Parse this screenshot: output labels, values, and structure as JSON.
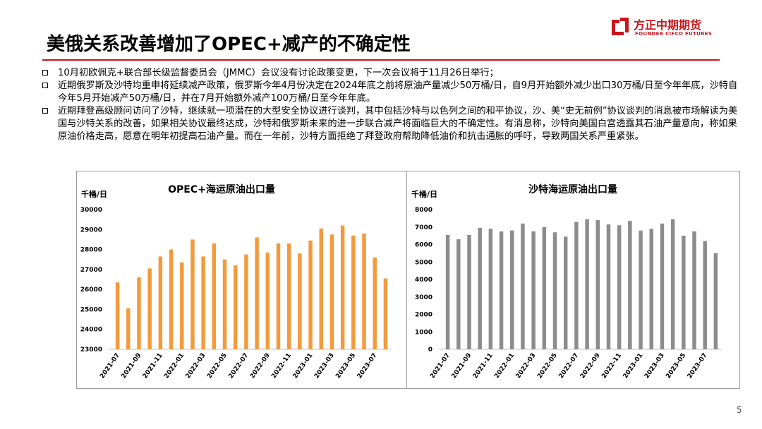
{
  "header": {
    "title": "美俄关系改善增加了OPEC+减产的不确定性",
    "logo": {
      "name_cn": "方正中期期货",
      "name_en": "FOUNDER CIFCO FUTURES",
      "icon": "founder-logo-icon",
      "color": "#c8161d"
    }
  },
  "bullets": [
    "10月初欧佩克+联合部长级监督委员会（JMMC）会议没有讨论政策变更，下一次会议将于11月26日举行；",
    "近期俄罗斯及沙特均重申将延续减产政策，俄罗斯今年4月份决定在2024年底之前将原油产量减少50万桶/日，自9月开始额外减少出口30万桶/日至今年年底，沙特自今年5月开始减产50万桶/日，并在7月开始额外减产100万桶/日至今年年底。",
    "近期拜登高级顾问访问了沙特，继续就一项潜在的大型安全协议进行谈判，其中包括沙特与以色列之间的和平协议，沙、美“史无前例”协议谈判的消息被市场解读为美国与沙特关系的改善，如果相关协议最终达成，沙特和俄罗斯未来的进一步联合减产将面临巨大的不确定性。有消息称，沙特向美国白宫透露其石油产量意向，称如果原油价格走高，愿意在明年初提高石油产量。而在一年前，沙特方面拒绝了拜登政府帮助降低油价和抗击通胀的呼吁，导致两国关系严重紧张。"
  ],
  "page_number": "5",
  "chart_data": [
    {
      "type": "bar",
      "title": "OPEC+海运原油出口量",
      "unit": "千桶/日",
      "color": "#f39a3d",
      "categories": [
        "2021-07",
        "2021-08",
        "2021-09",
        "2021-10",
        "2021-11",
        "2021-12",
        "2022-01",
        "2022-02",
        "2022-03",
        "2022-04",
        "2022-05",
        "2022-06",
        "2022-07",
        "2022-08",
        "2022-09",
        "2022-10",
        "2022-11",
        "2022-12",
        "2023-01",
        "2023-02",
        "2023-03",
        "2023-04",
        "2023-05",
        "2023-06",
        "2023-07",
        "2023-08"
      ],
      "xtick_labels": [
        "2021-07",
        "2021-09",
        "2021-11",
        "2022-01",
        "2022-03",
        "2022-05",
        "2022-07",
        "2022-09",
        "2022-11",
        "2023-01",
        "2023-03",
        "2023-05",
        "2023-07"
      ],
      "values": [
        26350,
        25050,
        26600,
        27050,
        27650,
        28000,
        27350,
        28500,
        27650,
        28300,
        27500,
        27200,
        27750,
        28600,
        27850,
        28300,
        28300,
        27800,
        28450,
        29050,
        28750,
        29200,
        28700,
        28800,
        27600,
        26550
      ],
      "ylim": [
        23000,
        30000
      ],
      "yticks": [
        "30000",
        "29000",
        "28000",
        "27000",
        "26000",
        "25000",
        "24000",
        "23000"
      ],
      "grid": false,
      "legend": "none"
    },
    {
      "type": "bar",
      "title": "沙特海运原油出口量",
      "unit": "千桶/日",
      "color": "#8c8c8c",
      "categories": [
        "2021-07",
        "2021-08",
        "2021-09",
        "2021-10",
        "2021-11",
        "2021-12",
        "2022-01",
        "2022-02",
        "2022-03",
        "2022-04",
        "2022-05",
        "2022-06",
        "2022-07",
        "2022-08",
        "2022-09",
        "2022-10",
        "2022-11",
        "2022-12",
        "2023-01",
        "2023-02",
        "2023-03",
        "2023-04",
        "2023-05",
        "2023-06",
        "2023-07",
        "2023-08"
      ],
      "xtick_labels": [
        "2021-07",
        "2021-09",
        "2021-11",
        "2022-01",
        "2022-03",
        "2022-05",
        "2022-07",
        "2022-09",
        "2022-11",
        "2023-01",
        "2023-03",
        "2023-05",
        "2023-07"
      ],
      "values": [
        6550,
        6300,
        6550,
        6950,
        6900,
        6750,
        6800,
        7200,
        6750,
        7000,
        6700,
        6450,
        7300,
        7450,
        7400,
        7150,
        7100,
        7350,
        6800,
        6900,
        7200,
        7450,
        6500,
        6750,
        6200,
        5500
      ],
      "ylim": [
        0,
        8000
      ],
      "yticks": [
        "8000",
        "7000",
        "6000",
        "5000",
        "4000",
        "3000",
        "2000",
        "1000",
        "0"
      ],
      "grid": false,
      "legend": "none"
    }
  ]
}
